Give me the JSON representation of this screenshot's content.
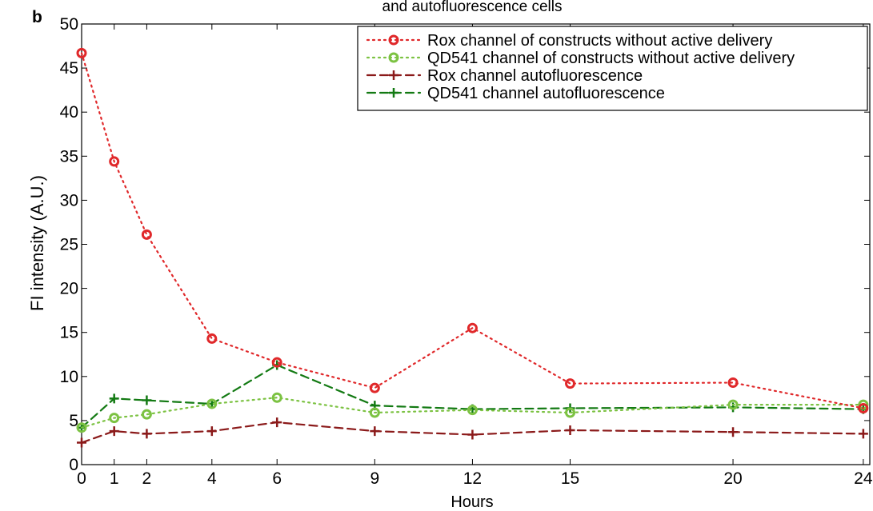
{
  "panel_label": "b",
  "title": "and autofluorescence cells",
  "chart_data": {
    "type": "line",
    "title": "and autofluorescence cells",
    "xlabel": "Hours",
    "ylabel": "FI intensity (A.U.)",
    "xlim": [
      0,
      24.2
    ],
    "ylim": [
      0,
      50
    ],
    "x_ticks": [
      0,
      1,
      2,
      4,
      6,
      9,
      12,
      15,
      20,
      24
    ],
    "y_ticks": [
      0,
      5,
      10,
      15,
      20,
      25,
      30,
      35,
      40,
      45,
      50
    ],
    "grid": false,
    "legend_position": "top-right",
    "x": [
      0,
      1,
      2,
      4,
      6,
      9,
      12,
      15,
      20,
      24
    ],
    "series": [
      {
        "name": "Rox channel of constructs without active delivery",
        "color": "#e0282a",
        "line_style": "dotted",
        "marker": "circle",
        "values": [
          46.7,
          34.4,
          26.1,
          14.3,
          11.6,
          8.7,
          15.5,
          9.2,
          9.3,
          6.4
        ]
      },
      {
        "name": "QD541 channel of constructs without active delivery",
        "color": "#7cc242",
        "line_style": "dotted",
        "marker": "circle",
        "values": [
          4.2,
          5.3,
          5.7,
          6.9,
          7.6,
          5.9,
          6.2,
          5.9,
          6.8,
          6.8
        ]
      },
      {
        "name": "Rox channel autofluorescence",
        "color": "#8b1a1a",
        "line_style": "dashed",
        "marker": "plus",
        "values": [
          2.5,
          3.8,
          3.5,
          3.8,
          4.8,
          3.8,
          3.4,
          3.9,
          3.7,
          3.5
        ]
      },
      {
        "name": "QD541 channel autofluorescence",
        "color": "#137a13",
        "line_style": "dashed",
        "marker": "plus",
        "values": [
          4.2,
          7.5,
          7.3,
          6.9,
          11.3,
          6.7,
          6.3,
          6.4,
          6.5,
          6.3
        ]
      }
    ]
  }
}
